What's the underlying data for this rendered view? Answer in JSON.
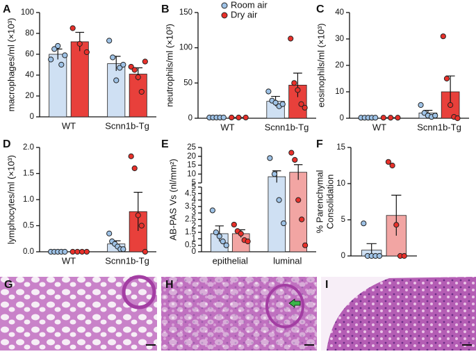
{
  "chart_data": [
    {
      "type": "bar",
      "panel": "A",
      "ylabel": "macrophages/ml (×10³)",
      "categories": [
        "WT",
        "Scnn1b-Tg"
      ],
      "ylim": [
        0,
        100
      ],
      "yticks": [
        0,
        20,
        40,
        60,
        80,
        100
      ],
      "series": [
        {
          "color": "#cfe0f3",
          "point_color": "#9ec2e6",
          "values": [
            60,
            51
          ],
          "errors": [
            5,
            7
          ],
          "points": [
            [
              55,
              65,
              68,
              50,
              59
            ],
            [
              73,
              57,
              35,
              47,
              50
            ]
          ]
        },
        {
          "color": "#e8403b",
          "point_color": "#e8302a",
          "values": [
            72,
            41
          ],
          "errors": [
            9,
            6
          ],
          "points": [
            [
              85,
              70,
              62
            ],
            [
              48,
              45,
              38,
              24,
              53
            ]
          ]
        }
      ]
    },
    {
      "type": "bar",
      "panel": "B",
      "ylabel": "neutrophils/ml (×10³)",
      "categories": [
        "WT",
        "Scnn1b-Tg"
      ],
      "ylim": [
        0,
        150
      ],
      "yticks": [
        0,
        50,
        100,
        150
      ],
      "legend": "top",
      "series": [
        {
          "name": "Room air",
          "color": "#cfe0f3",
          "point_color": "#9ec2e6",
          "values": [
            1,
            24
          ],
          "errors": [
            0,
            7
          ],
          "points": [
            [
              1,
              1,
              1,
              1,
              1
            ],
            [
              38,
              25,
              22,
              17,
              20
            ]
          ]
        },
        {
          "name": "Dry air",
          "color": "#e8403b",
          "point_color": "#e8302a",
          "values": [
            1,
            47
          ],
          "errors": [
            0,
            17
          ],
          "points": [
            [
              1,
              1,
              1
            ],
            [
              113,
              50,
              40,
              20,
              15
            ]
          ]
        }
      ]
    },
    {
      "type": "bar",
      "panel": "C",
      "ylabel": "eosinophils/ml (×10³)",
      "categories": [
        "WT",
        "Scnn1b-Tg"
      ],
      "ylim": [
        0,
        40
      ],
      "yticks": [
        0,
        10,
        20,
        30,
        40
      ],
      "series": [
        {
          "color": "#cfe0f3",
          "point_color": "#9ec2e6",
          "values": [
            0.2,
            2
          ],
          "errors": [
            0,
            1
          ],
          "points": [
            [
              0.2,
              0.2,
              0.2,
              0.2,
              0.2
            ],
            [
              5,
              2,
              1,
              0.5,
              1
            ]
          ]
        },
        {
          "color": "#e8403b",
          "point_color": "#e8302a",
          "values": [
            0.2,
            10
          ],
          "errors": [
            0,
            6
          ],
          "points": [
            [
              0.2,
              0.2,
              0.2
            ],
            [
              31,
              15,
              5,
              0.5,
              0
            ]
          ]
        }
      ]
    },
    {
      "type": "bar",
      "panel": "D",
      "ylabel": "lymphocytes/ml (×10³)",
      "categories": [
        "WT",
        "Scnn1b-Tg"
      ],
      "ylim": [
        0,
        2
      ],
      "yticks": [
        {
          "value": 0,
          "label": "0.0"
        },
        {
          "value": 0.5,
          "label": "0.5"
        },
        {
          "value": 1,
          "label": "1.0"
        },
        {
          "value": 1.5,
          "label": "1.5"
        },
        {
          "value": 2,
          "label": "2.0"
        }
      ],
      "series": [
        {
          "color": "#cfe0f3",
          "point_color": "#9ec2e6",
          "values": [
            0,
            0.15
          ],
          "errors": [
            0,
            0.06
          ],
          "points": [
            [
              0,
              0,
              0,
              0,
              0
            ],
            [
              0.35,
              0.2,
              0.15,
              0.1,
              0.05,
              0.05
            ]
          ]
        },
        {
          "color": "#e8403b",
          "point_color": "#e8302a",
          "values": [
            0,
            0.77
          ],
          "errors": [
            0,
            0.37
          ],
          "points": [
            [
              0,
              0,
              0,
              0
            ],
            [
              1.83,
              1.6,
              0.7,
              0.5,
              0
            ]
          ]
        }
      ]
    },
    {
      "type": "bar",
      "panel": "E",
      "ylabel": "AB-PAS Vs (nl/mm²)",
      "categories": [
        "epithelial",
        "luminal"
      ],
      "ysegments": [
        {
          "ylim": [
            0,
            5
          ],
          "yticks": [
            0,
            0.5,
            1,
            1.5,
            2,
            2.5,
            3,
            3.5,
            4,
            4.5,
            5
          ]
        },
        {
          "ylim": [
            5,
            25
          ],
          "yticks": [
            5,
            10,
            15,
            20,
            25
          ]
        }
      ],
      "series": [
        {
          "color": "#cfe0f3",
          "point_color": "#9ec2e6",
          "values": [
            1.4,
            8.5
          ],
          "errors": [
            0.6,
            3.3
          ],
          "points": [
            [
              3.2,
              1.5,
              1.2,
              0.8,
              0.5
            ],
            [
              19,
              10,
              4,
              2.2
            ]
          ]
        },
        {
          "color": "#f2a5a3",
          "point_color": "#e8302a",
          "values": [
            1.4,
            11
          ],
          "errors": [
            0.3,
            4.3
          ],
          "points": [
            [
              2.1,
              1.6,
              1.4,
              0.9,
              0.8
            ],
            [
              22,
              18,
              4,
              2.5,
              0.5
            ]
          ]
        }
      ]
    },
    {
      "type": "bar",
      "panel": "F",
      "ylabel": [
        "% Parenchymal",
        "Consolidation"
      ],
      "categories": [
        null
      ],
      "ylim": [
        0,
        15
      ],
      "yticks": [
        0,
        5,
        10,
        15
      ],
      "series": [
        {
          "color": "#cfe0f3",
          "point_color": "#9ec2e6",
          "values": [
            0.8
          ],
          "errors": [
            0.9
          ],
          "points": [
            [
              4.5,
              0,
              0,
              0,
              0
            ]
          ]
        },
        {
          "color": "#f2a5a3",
          "point_color": "#e8302a",
          "values": [
            5.6
          ],
          "errors": [
            2.8
          ],
          "points": [
            [
              13,
              12.5,
              4.3,
              0,
              0
            ]
          ]
        }
      ]
    }
  ],
  "images": [
    {
      "panel": "G"
    },
    {
      "panel": "H"
    },
    {
      "panel": "I"
    }
  ]
}
